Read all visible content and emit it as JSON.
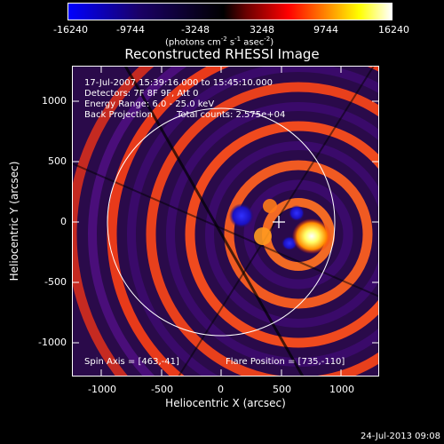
{
  "colorbar": {
    "ticks": [
      "-16240",
      "-9744",
      "-3248",
      "3248",
      "9744",
      "16240"
    ],
    "units": "(photons cm",
    "units_exp1": "-2",
    "units_mid": " s",
    "units_exp2": "-1",
    "units_mid2": " asec",
    "units_exp3": "-2",
    "units_end": ")",
    "colors": [
      "#0000ff",
      "#000000",
      "#ff0000",
      "#ffff00",
      "#ffffff"
    ]
  },
  "title": "Reconstructed RHESSI Image",
  "info": {
    "line1": "17-Jul-2007 15:39:16.000 to 15:45:10.000",
    "line2": "Detectors: 7F 8F 9F, Att 0",
    "line3": "Energy Range: 6.0 - 25.0 keV",
    "line4a": "Back Projection",
    "line4b": "Total counts: 2.575e+04",
    "spin_axis": "Spin Axis = [463,-41]",
    "flare_position": "Flare Position = [735,-110]"
  },
  "axes": {
    "xlabel": "Heliocentric X (arcsec)",
    "ylabel": "Heliocentric Y (arcsec)",
    "xticks": [
      "-1000",
      "-500",
      "0",
      "500",
      "1000"
    ],
    "yticks": [
      "1000",
      "500",
      "0",
      "-500",
      "-1000"
    ]
  },
  "footer": {
    "timestamp": "24-Jul-2013 09:08"
  }
}
